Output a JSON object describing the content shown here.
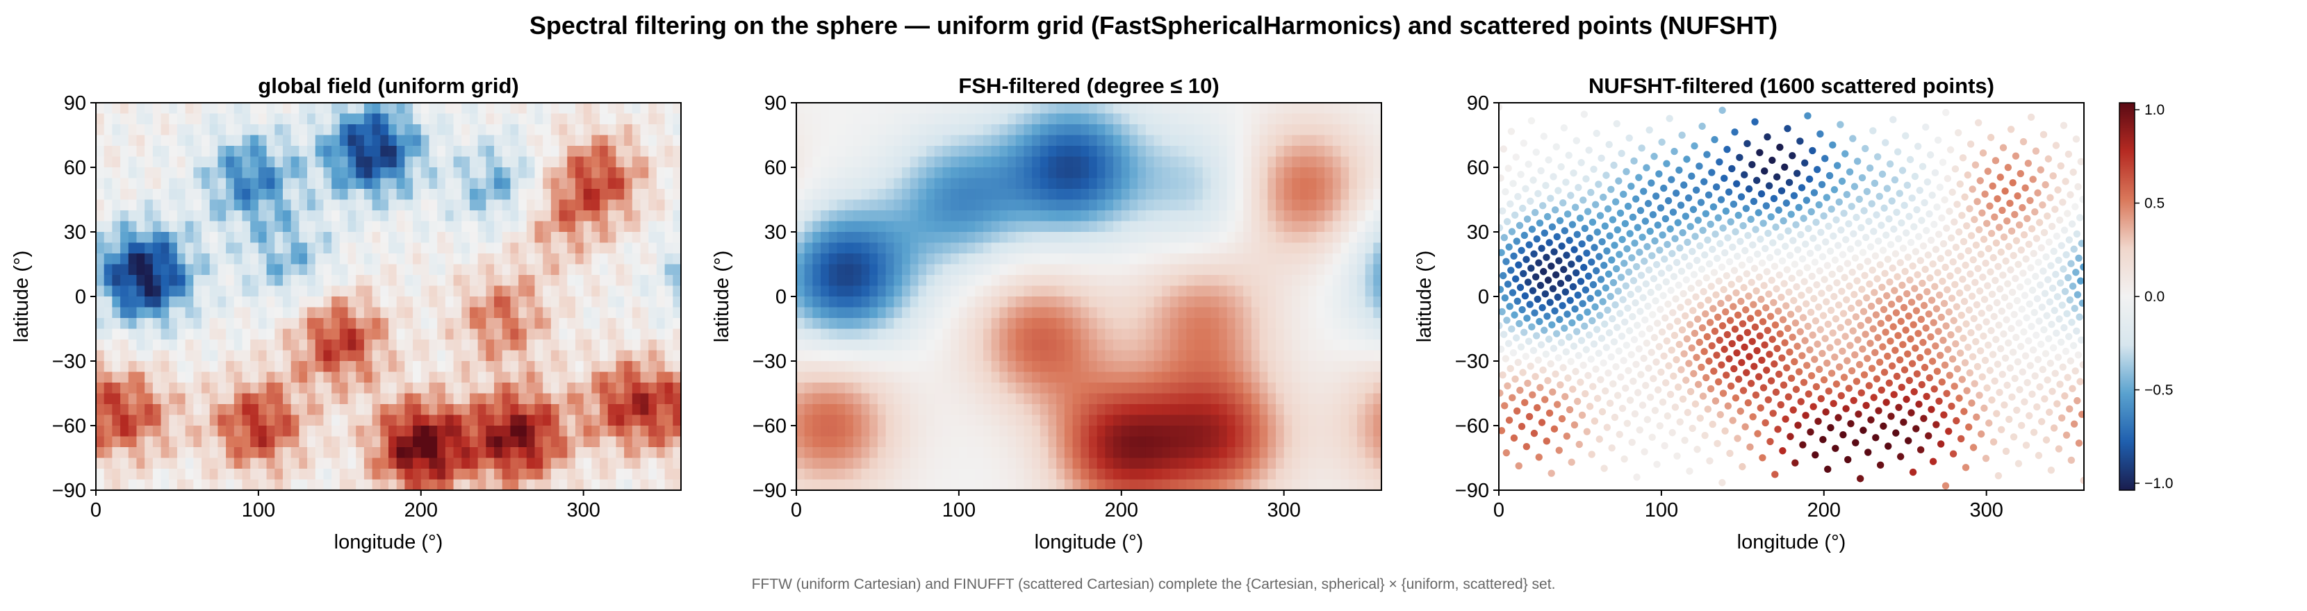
{
  "figure": {
    "title": "Spectral filtering on the sphere — uniform grid (FastSphericalHarmonics) and scattered points (NUFSHT)",
    "caption": "FFTW (uniform Cartesian) and FINUFFT (scattered Cartesian) complete the {Cartesian, spherical} × {uniform, scattered} set."
  },
  "colors": {
    "colormap": [
      "#1a1d4e",
      "#1f5fae",
      "#5aa2cf",
      "#d7e6ee",
      "#f2f2f2",
      "#f0d6cb",
      "#d9785b",
      "#b52a22",
      "#5a0a14"
    ],
    "axis": "#000000",
    "caption": "#666666"
  },
  "chart_data": [
    {
      "type": "heatmap",
      "title": "global field (uniform grid)",
      "xlabel": "longitude (°)",
      "ylabel": "latitude (°)",
      "xlim": [
        0,
        360
      ],
      "ylim": [
        -90,
        90
      ],
      "xticks": [
        0,
        100,
        200,
        300
      ],
      "yticks": [
        -90,
        -60,
        -30,
        0,
        30,
        60,
        90
      ],
      "grid": false,
      "color_range": [
        -1.0,
        1.0
      ],
      "blobs": [
        {
          "lon": 30,
          "lat": 10,
          "amp": -1.0
        },
        {
          "lon": 170,
          "lat": 68,
          "amp": -0.9
        },
        {
          "lon": 95,
          "lat": 55,
          "amp": -0.6
        },
        {
          "lon": 250,
          "lat": 50,
          "amp": -0.5
        },
        {
          "lon": 120,
          "lat": 15,
          "amp": -0.4
        },
        {
          "lon": 310,
          "lat": 55,
          "amp": 0.6
        },
        {
          "lon": 280,
          "lat": 35,
          "amp": 0.4
        },
        {
          "lon": 150,
          "lat": -20,
          "amp": 0.7
        },
        {
          "lon": 200,
          "lat": -70,
          "amp": 1.0
        },
        {
          "lon": 260,
          "lat": -65,
          "amp": 0.9
        },
        {
          "lon": 100,
          "lat": -60,
          "amp": 0.7
        },
        {
          "lon": 250,
          "lat": -10,
          "amp": 0.5
        },
        {
          "lon": 20,
          "lat": -55,
          "amp": 0.6
        },
        {
          "lon": 330,
          "lat": -50,
          "amp": 0.7
        }
      ]
    },
    {
      "type": "heatmap",
      "title": "FSH-filtered (degree ≤ 10)",
      "xlabel": "longitude (°)",
      "ylabel": "latitude (°)",
      "xlim": [
        0,
        360
      ],
      "ylim": [
        -90,
        90
      ],
      "xticks": [
        0,
        100,
        200,
        300
      ],
      "yticks": [
        -90,
        -60,
        -30,
        0,
        30,
        60,
        90
      ],
      "grid": false,
      "color_range": [
        -1.0,
        1.0
      ],
      "blobs": [
        {
          "lon": 30,
          "lat": 10,
          "amp": -0.85
        },
        {
          "lon": 170,
          "lat": 60,
          "amp": -0.8
        },
        {
          "lon": 100,
          "lat": 45,
          "amp": -0.55
        },
        {
          "lon": 250,
          "lat": 50,
          "amp": -0.35
        },
        {
          "lon": 310,
          "lat": 50,
          "amp": 0.55
        },
        {
          "lon": 150,
          "lat": -20,
          "amp": 0.55
        },
        {
          "lon": 200,
          "lat": -70,
          "amp": 0.8
        },
        {
          "lon": 260,
          "lat": -65,
          "amp": 0.7
        },
        {
          "lon": 250,
          "lat": -10,
          "amp": 0.45
        },
        {
          "lon": 20,
          "lat": -60,
          "amp": 0.55
        }
      ]
    },
    {
      "type": "scatter",
      "title": "NUFSHT-filtered (1600 scattered points)",
      "xlabel": "longitude (°)",
      "ylabel": "latitude (°)",
      "xlim": [
        0,
        360
      ],
      "ylim": [
        -90,
        90
      ],
      "xticks": [
        0,
        100,
        200,
        300
      ],
      "yticks": [
        -90,
        -60,
        -30,
        0,
        30,
        60,
        90
      ],
      "grid": false,
      "n_points": 1600,
      "color_range": [
        -1.0,
        1.0
      ],
      "colorbar_ticks": [
        {
          "value": 1.0,
          "label": "1.0"
        },
        {
          "value": 0.5,
          "label": "0.5"
        },
        {
          "value": 0.0,
          "label": "0.0"
        },
        {
          "value": -0.5,
          "label": "−0.5"
        },
        {
          "value": -1.0,
          "label": "−1.0"
        }
      ],
      "blobs": [
        {
          "lon": 30,
          "lat": 10,
          "amp": -0.95
        },
        {
          "lon": 170,
          "lat": 65,
          "amp": -1.0
        },
        {
          "lon": 100,
          "lat": 45,
          "amp": -0.55
        },
        {
          "lon": 250,
          "lat": 50,
          "amp": -0.35
        },
        {
          "lon": 310,
          "lat": 50,
          "amp": 0.55
        },
        {
          "lon": 150,
          "lat": -25,
          "amp": 0.7
        },
        {
          "lon": 200,
          "lat": -75,
          "amp": 1.0
        },
        {
          "lon": 260,
          "lat": -65,
          "amp": 0.8
        },
        {
          "lon": 250,
          "lat": -10,
          "amp": 0.45
        },
        {
          "lon": 20,
          "lat": -60,
          "amp": 0.6
        }
      ]
    }
  ]
}
